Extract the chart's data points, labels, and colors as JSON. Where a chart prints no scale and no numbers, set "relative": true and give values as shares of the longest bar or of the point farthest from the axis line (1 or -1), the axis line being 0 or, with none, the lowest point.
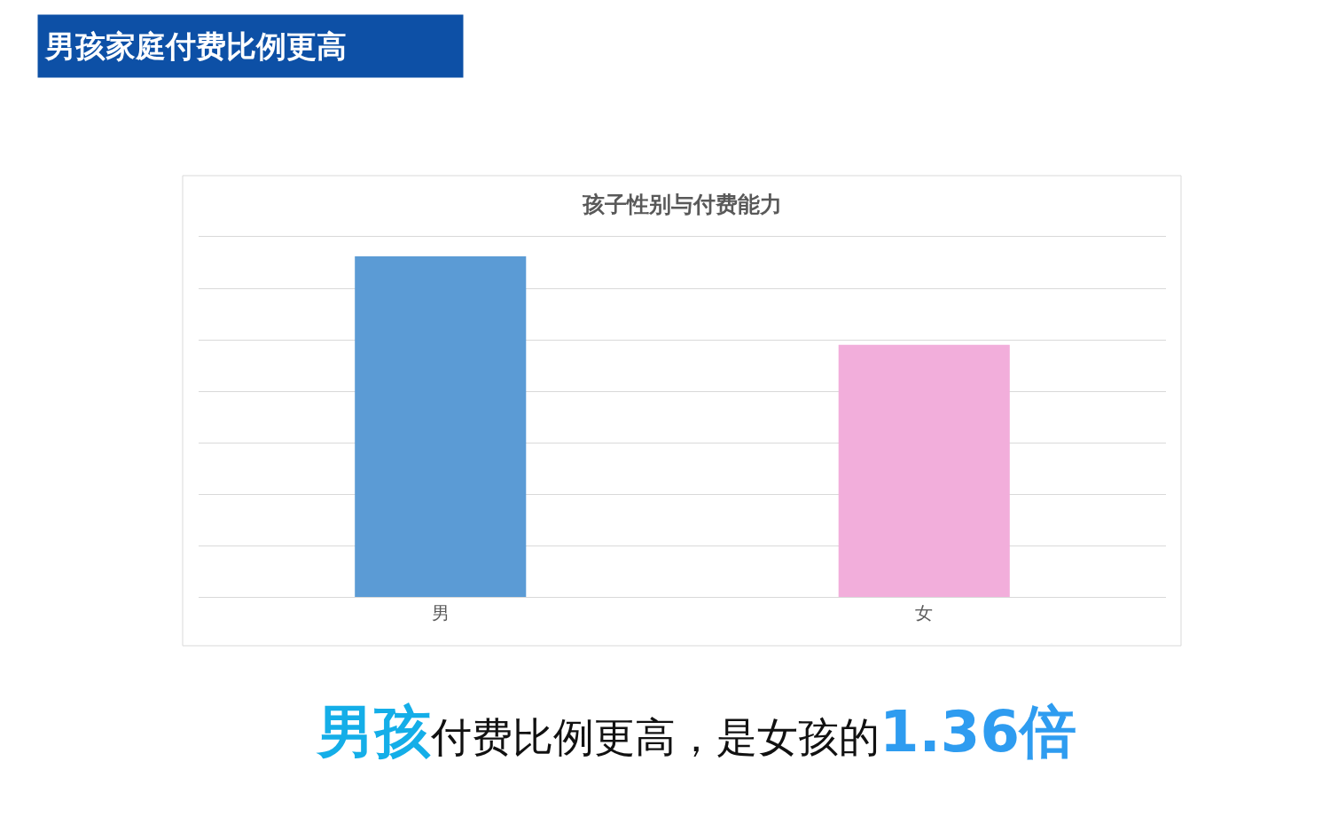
{
  "chart_data": {
    "type": "bar",
    "title": "孩子性别与付费能力",
    "categories": [
      "男",
      "女"
    ],
    "values": [
      1,
      0.74
    ],
    "colors": [
      "#5b9bd5",
      "#f2aedb"
    ],
    "relative": true,
    "grid": "y",
    "annotations": [
      "男孩家庭付费比例更高",
      "男孩",
      "付费比例更高，是女孩的",
      "1.36倍"
    ]
  }
}
